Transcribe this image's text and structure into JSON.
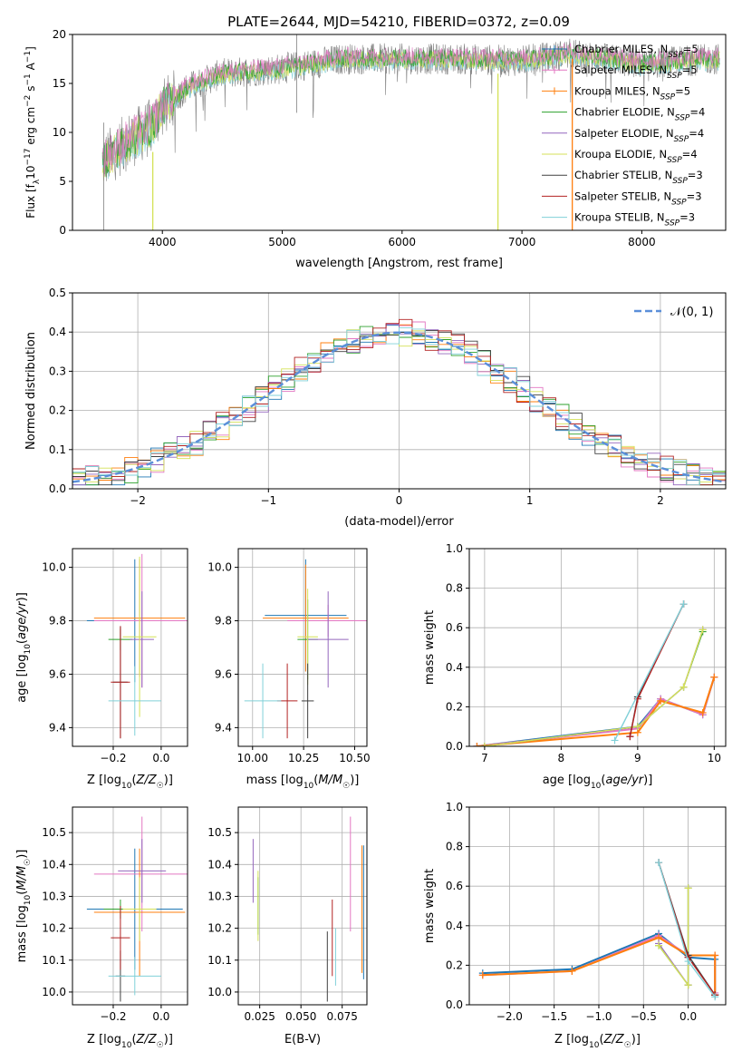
{
  "figure_title": "PLATE=2644, MJD=54210, FIBERID=0372, z=0.09",
  "colors": {
    "Chabrier MILES": "#1f77b4",
    "Salpeter MILES": "#e377c2",
    "Kroupa MILES": "#ff7f0e",
    "Chabrier ELODIE": "#2ca02c",
    "Salpeter ELODIE": "#9467bd",
    "Kroupa ELODIE": "#d4e157",
    "Chabrier STELIB": "#404040",
    "Salpeter STELIB": "#b22222",
    "Kroupa STELIB": "#80d0d8",
    "normal_curve": "#5b8fd9"
  },
  "chart_data": [
    {
      "id": "spectrum",
      "type": "line",
      "title": "PLATE=2644, MJD=54210, FIBERID=0372, z=0.09",
      "xlabel": "wavelength [Angstrom, rest frame]",
      "ylabel": "Flux [f_λ 10⁻¹⁷ erg cm⁻² s⁻¹ A⁻¹]",
      "xlim": [
        3250,
        8700
      ],
      "ylim": [
        0,
        20
      ],
      "xticks": [
        4000,
        5000,
        6000,
        7000,
        8000
      ],
      "yticks": [
        0,
        5,
        10,
        15,
        20
      ],
      "grid": false,
      "legend_position": "top-right",
      "legend": [
        {
          "label": "Chabrier MILES, N",
          "sub": "SSP",
          "suffix": "=5"
        },
        {
          "label": "Salpeter MILES, N",
          "sub": "SSP",
          "suffix": "=5"
        },
        {
          "label": "Kroupa MILES, N",
          "sub": "SSP",
          "suffix": "=5"
        },
        {
          "label": "Chabrier ELODIE, N",
          "sub": "SSP",
          "suffix": "=4"
        },
        {
          "label": "Salpeter ELODIE, N",
          "sub": "SSP",
          "suffix": "=4"
        },
        {
          "label": "Kroupa ELODIE, N",
          "sub": "SSP",
          "suffix": "=4"
        },
        {
          "label": "Chabrier STELIB, N",
          "sub": "SSP",
          "suffix": "=3"
        },
        {
          "label": "Salpeter STELIB, N",
          "sub": "SSP",
          "suffix": "=3"
        },
        {
          "label": "Kroupa STELIB, N",
          "sub": "SSP",
          "suffix": "=3"
        }
      ],
      "data_trend": {
        "x": [
          3500,
          3700,
          3900,
          4000,
          4200,
          4500,
          5000,
          5500,
          6000,
          6500,
          7000,
          7400,
          8000,
          8600
        ],
        "y": [
          7,
          9,
          10.5,
          12.5,
          14.5,
          16,
          16.5,
          17.5,
          17.5,
          17.5,
          17.3,
          18,
          17,
          17.5
        ]
      },
      "drop_lines": [
        {
          "x": 3920,
          "ymin": 0,
          "ymax": 8
        },
        {
          "x": 6800,
          "ymin": 0,
          "ymax": 16
        },
        {
          "x": 7420,
          "ymin": 0,
          "ymax": 17.5
        }
      ]
    },
    {
      "id": "residual_hist",
      "type": "histogram",
      "xlabel": "(data-model)/error",
      "ylabel": "Normed distribution",
      "xlim": [
        -2.5,
        2.5
      ],
      "ylim": [
        0,
        0.5
      ],
      "xticks": [
        -2,
        -1,
        0,
        1,
        2
      ],
      "yticks": [
        0.0,
        0.1,
        0.2,
        0.3,
        0.4,
        0.5
      ],
      "grid": true,
      "legend_position": "top-right",
      "legend": [
        "𝒩(0, 1)"
      ],
      "bin_width": 0.1,
      "bin_start": -2.5,
      "num_bins": 50
    },
    {
      "id": "age_vs_Z",
      "type": "errorbar",
      "xlabel": "Z [log₁₀(Z/Z☉)]",
      "ylabel": "age  [log₁₀(age/yr)]",
      "xlim": [
        -0.37,
        0.11
      ],
      "ylim": [
        9.33,
        10.07
      ],
      "xticks": [
        -0.2,
        0.0
      ],
      "yticks": [
        9.4,
        9.6,
        9.8,
        10.0
      ],
      "grid": true,
      "points": [
        {
          "series": "Chabrier MILES",
          "x": -0.11,
          "xerr": 0.2,
          "y": 9.8,
          "yerr": [
            0.23,
            0.23
          ]
        },
        {
          "series": "Salpeter MILES",
          "x": -0.08,
          "xerr": 0.2,
          "y": 9.8,
          "yerr": [
            0.25,
            0.25
          ]
        },
        {
          "series": "Kroupa MILES",
          "x": -0.09,
          "xerr": 0.19,
          "y": 9.81,
          "yerr": [
            0.22,
            0.22
          ]
        },
        {
          "series": "Chabrier ELODIE",
          "x": -0.17,
          "xerr": 0.05,
          "y": 9.73,
          "yerr": [
            0.04,
            0.04
          ]
        },
        {
          "series": "Salpeter ELODIE",
          "x": -0.08,
          "xerr": 0.05,
          "y": 9.73,
          "yerr": [
            0.18,
            0.18
          ]
        },
        {
          "series": "Kroupa ELODIE",
          "x": -0.09,
          "xerr": 0.07,
          "y": 9.74,
          "yerr": [
            0.3,
            0.3
          ]
        },
        {
          "series": "Chabrier STELIB",
          "x": -0.17,
          "xerr": 0.03,
          "y": 9.57,
          "yerr": [
            0.21,
            0.21
          ]
        },
        {
          "series": "Salpeter STELIB",
          "x": -0.17,
          "xerr": 0.04,
          "y": 9.57,
          "yerr": [
            0.21,
            0.21
          ]
        },
        {
          "series": "Kroupa STELIB",
          "x": -0.11,
          "xerr": 0.11,
          "y": 9.5,
          "yerr": [
            0.13,
            0.13
          ]
        }
      ]
    },
    {
      "id": "age_vs_mass",
      "type": "errorbar",
      "xlabel": "mass [log₁₀(M/M☉)]",
      "ylabel": "",
      "xlim": [
        9.93,
        10.56
      ],
      "ylim": [
        9.33,
        10.07
      ],
      "xticks": [
        10.0,
        10.25,
        10.5
      ],
      "yticks": [
        9.4,
        9.6,
        9.8,
        10.0
      ],
      "grid": true,
      "points": [
        {
          "series": "Chabrier MILES",
          "x": 10.26,
          "xerr": 0.2,
          "y": 9.82,
          "yerr": [
            0.21,
            0.21
          ]
        },
        {
          "series": "Salpeter MILES",
          "x": 10.37,
          "xerr": 0.2,
          "y": 9.8,
          "yerr": [
            0.06,
            0.06
          ]
        },
        {
          "series": "Kroupa MILES",
          "x": 10.26,
          "xerr": 0.21,
          "y": 9.81,
          "yerr": [
            0.2,
            0.2
          ]
        },
        {
          "series": "Chabrier ELODIE",
          "x": 10.27,
          "xerr": 0.05,
          "y": 9.73,
          "yerr": [
            0.15,
            0.15
          ]
        },
        {
          "series": "Salpeter ELODIE",
          "x": 10.37,
          "xerr": 0.1,
          "y": 9.73,
          "yerr": [
            0.18,
            0.18
          ]
        },
        {
          "series": "Kroupa ELODIE",
          "x": 10.27,
          "xerr": 0.05,
          "y": 9.74,
          "yerr": [
            0.18,
            0.18
          ]
        },
        {
          "series": "Chabrier STELIB",
          "x": 10.27,
          "xerr": 0.03,
          "y": 9.5,
          "yerr": [
            0.14,
            0.14
          ]
        },
        {
          "series": "Salpeter STELIB",
          "x": 10.17,
          "xerr": 0.05,
          "y": 9.5,
          "yerr": [
            0.14,
            0.14
          ]
        },
        {
          "series": "Kroupa STELIB",
          "x": 10.05,
          "xerr": 0.09,
          "y": 9.5,
          "yerr": [
            0.14,
            0.14
          ]
        }
      ]
    },
    {
      "id": "massweight_vs_age",
      "type": "line",
      "xlabel": "age  [log₁₀(age/yr)]",
      "ylabel": "mass weight",
      "xlim": [
        6.8,
        10.15
      ],
      "ylim": [
        0,
        1
      ],
      "xticks": [
        7,
        8,
        9,
        10
      ],
      "yticks": [
        0.0,
        0.2,
        0.4,
        0.6,
        0.8,
        1.0
      ],
      "grid": true,
      "series": [
        {
          "name": "Chabrier MILES",
          "x": [
            6.9,
            9.0,
            9.3,
            9.85,
            10.0
          ],
          "y": [
            0.0,
            0.1,
            0.24,
            0.16,
            0.35
          ]
        },
        {
          "name": "Salpeter MILES",
          "x": [
            6.9,
            9.0,
            9.3,
            9.85,
            10.0
          ],
          "y": [
            0.0,
            0.09,
            0.24,
            0.16,
            0.35
          ]
        },
        {
          "name": "Kroupa MILES",
          "x": [
            6.9,
            9.0,
            9.3,
            9.85,
            10.0
          ],
          "y": [
            0.0,
            0.07,
            0.23,
            0.17,
            0.35
          ]
        },
        {
          "name": "Chabrier ELODIE",
          "x": [
            7.0,
            9.0,
            9.6,
            9.85
          ],
          "y": [
            0.0,
            0.1,
            0.3,
            0.58
          ]
        },
        {
          "name": "Salpeter ELODIE",
          "x": [
            7.0,
            9.0,
            9.6,
            9.85
          ],
          "y": [
            0.0,
            0.1,
            0.3,
            0.59
          ]
        },
        {
          "name": "Kroupa ELODIE",
          "x": [
            7.0,
            9.0,
            9.6,
            9.85
          ],
          "y": [
            0.0,
            0.1,
            0.3,
            0.59
          ]
        },
        {
          "name": "Chabrier STELIB",
          "x": [
            8.9,
            9.0,
            9.6
          ],
          "y": [
            0.05,
            0.25,
            0.72
          ]
        },
        {
          "name": "Salpeter STELIB",
          "x": [
            8.9,
            9.0,
            9.6
          ],
          "y": [
            0.05,
            0.24,
            0.72
          ]
        },
        {
          "name": "Kroupa STELIB",
          "x": [
            8.7,
            9.6
          ],
          "y": [
            0.03,
            0.72
          ]
        }
      ]
    },
    {
      "id": "mass_vs_Z",
      "type": "errorbar",
      "xlabel": "Z [log₁₀(Z/Z☉)]",
      "ylabel": "mass [log₁₀(M/M☉)]",
      "xlim": [
        -0.37,
        0.11
      ],
      "ylim": [
        9.96,
        10.58
      ],
      "xticks": [
        -0.2,
        0.0
      ],
      "yticks": [
        10.0,
        10.1,
        10.2,
        10.3,
        10.4,
        10.5
      ],
      "grid": true,
      "points": [
        {
          "series": "Chabrier MILES",
          "x": -0.11,
          "xerr": 0.2,
          "y": 10.26,
          "yerr": [
            0.19,
            0.19
          ]
        },
        {
          "series": "Salpeter MILES",
          "x": -0.08,
          "xerr": 0.2,
          "y": 10.37,
          "yerr": [
            0.18,
            0.18
          ]
        },
        {
          "series": "Kroupa MILES",
          "x": -0.09,
          "xerr": 0.19,
          "y": 10.25,
          "yerr": [
            0.2,
            0.2
          ]
        },
        {
          "series": "Chabrier ELODIE",
          "x": -0.17,
          "xerr": 0.07,
          "y": 10.26,
          "yerr": [
            0.03,
            0.03
          ]
        },
        {
          "series": "Salpeter ELODIE",
          "x": -0.08,
          "xerr": 0.1,
          "y": 10.38,
          "yerr": [
            0.1,
            0.1
          ]
        },
        {
          "series": "Kroupa ELODIE",
          "x": -0.09,
          "xerr": 0.07,
          "y": 10.26,
          "yerr": [
            0.1,
            0.1
          ]
        },
        {
          "series": "Chabrier STELIB",
          "x": -0.17,
          "xerr": 0.02,
          "y": 10.05,
          "yerr": [
            0.08,
            0.08
          ]
        },
        {
          "series": "Salpeter STELIB",
          "x": -0.17,
          "xerr": 0.04,
          "y": 10.17,
          "yerr": [
            0.1,
            0.1
          ]
        },
        {
          "series": "Kroupa STELIB",
          "x": -0.11,
          "xerr": 0.11,
          "y": 10.05,
          "yerr": [
            0.06,
            0.06
          ]
        }
      ]
    },
    {
      "id": "mass_vs_ebv",
      "type": "errorbar",
      "xlabel": "E(B-V)",
      "ylabel": "",
      "xlim": [
        0.012,
        0.09
      ],
      "ylim": [
        9.96,
        10.58
      ],
      "xticks": [
        0.025,
        0.05,
        0.075
      ],
      "yticks": [
        10.0,
        10.1,
        10.2,
        10.3,
        10.4,
        10.5
      ],
      "grid": true,
      "points": [
        {
          "series": "Chabrier MILES",
          "x": 0.088,
          "xerr": 0,
          "y": 10.25,
          "yerr": [
            0.21,
            0.21
          ]
        },
        {
          "series": "Salpeter MILES",
          "x": 0.08,
          "xerr": 0,
          "y": 10.37,
          "yerr": [
            0.18,
            0.18
          ]
        },
        {
          "series": "Kroupa MILES",
          "x": 0.087,
          "xerr": 0,
          "y": 10.26,
          "yerr": [
            0.2,
            0.2
          ]
        },
        {
          "series": "Chabrier ELODIE",
          "x": 0.024,
          "xerr": 0,
          "y": 10.27,
          "yerr": [
            0.09,
            0.09
          ]
        },
        {
          "series": "Salpeter ELODIE",
          "x": 0.021,
          "xerr": 0,
          "y": 10.38,
          "yerr": [
            0.1,
            0.1
          ]
        },
        {
          "series": "Kroupa ELODIE",
          "x": 0.024,
          "xerr": 0,
          "y": 10.27,
          "yerr": [
            0.11,
            0.11
          ]
        },
        {
          "series": "Chabrier STELIB",
          "x": 0.066,
          "xerr": 0,
          "y": 10.08,
          "yerr": [
            0.11,
            0.11
          ]
        },
        {
          "series": "Salpeter STELIB",
          "x": 0.069,
          "xerr": 0,
          "y": 10.17,
          "yerr": [
            0.12,
            0.12
          ]
        },
        {
          "series": "Kroupa STELIB",
          "x": 0.071,
          "xerr": 0,
          "y": 10.11,
          "yerr": [
            0.09,
            0.09
          ]
        }
      ]
    },
    {
      "id": "massweight_vs_Z",
      "type": "line",
      "xlabel": "Z [log₁₀(Z/Z☉)]",
      "ylabel": "mass weight",
      "xlim": [
        -2.45,
        0.42
      ],
      "ylim": [
        0,
        1
      ],
      "xticks": [
        -2.0,
        -1.5,
        -1.0,
        -0.5,
        0.0
      ],
      "yticks": [
        0.0,
        0.2,
        0.4,
        0.6,
        0.8,
        1.0
      ],
      "grid": true,
      "series": [
        {
          "name": "Chabrier MILES",
          "x": [
            -2.3,
            -1.3,
            -0.33,
            0.0,
            0.3,
            0.3
          ],
          "y": [
            0.16,
            0.18,
            0.36,
            0.24,
            0.23,
            0.05
          ]
        },
        {
          "name": "Salpeter MILES",
          "x": [
            -2.3,
            -1.3,
            -0.33,
            0.0,
            0.3,
            0.3
          ],
          "y": [
            0.15,
            0.17,
            0.35,
            0.25,
            0.25,
            0.06
          ]
        },
        {
          "name": "Kroupa MILES",
          "x": [
            -2.3,
            -1.3,
            -0.33,
            0.0,
            0.3,
            0.3
          ],
          "y": [
            0.15,
            0.17,
            0.34,
            0.25,
            0.25,
            0.05
          ]
        },
        {
          "name": "Chabrier ELODIE",
          "x": [
            -0.33,
            0.0,
            0.0
          ],
          "y": [
            0.3,
            0.1,
            0.59
          ]
        },
        {
          "name": "Salpeter ELODIE",
          "x": [
            -0.33,
            0.0,
            0.0
          ],
          "y": [
            0.31,
            0.1,
            0.59
          ]
        },
        {
          "name": "Kroupa ELODIE",
          "x": [
            -0.33,
            0.0,
            0.0
          ],
          "y": [
            0.3,
            0.1,
            0.59
          ]
        },
        {
          "name": "Chabrier STELIB",
          "x": [
            -0.33,
            0.0,
            0.3
          ],
          "y": [
            0.72,
            0.25,
            0.05
          ]
        },
        {
          "name": "Salpeter STELIB",
          "x": [
            -0.33,
            0.0,
            0.3
          ],
          "y": [
            0.72,
            0.24,
            0.05
          ]
        },
        {
          "name": "Kroupa STELIB",
          "x": [
            -0.33,
            0.0,
            0.3
          ],
          "y": [
            0.72,
            0.22,
            0.04
          ]
        }
      ]
    }
  ]
}
